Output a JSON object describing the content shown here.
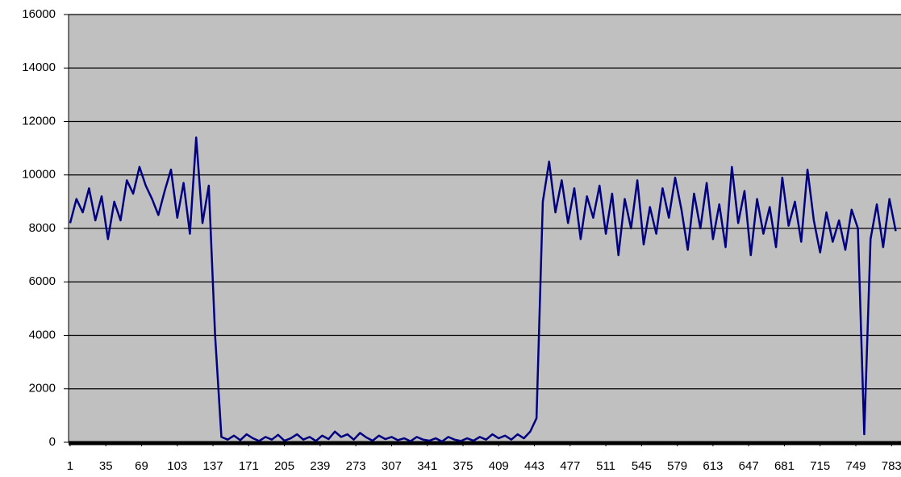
{
  "chart_data": {
    "type": "line",
    "x": [
      1,
      7,
      13,
      19,
      25,
      31,
      37,
      43,
      49,
      55,
      61,
      67,
      73,
      79,
      85,
      91,
      97,
      103,
      109,
      115,
      121,
      127,
      133,
      139,
      145,
      151,
      157,
      163,
      169,
      175,
      181,
      187,
      193,
      199,
      205,
      211,
      217,
      223,
      229,
      235,
      241,
      247,
      253,
      259,
      265,
      271,
      277,
      283,
      289,
      295,
      301,
      307,
      313,
      319,
      325,
      331,
      337,
      343,
      349,
      355,
      361,
      367,
      373,
      379,
      385,
      391,
      397,
      403,
      409,
      415,
      421,
      427,
      433,
      439,
      445,
      451,
      457,
      463,
      469,
      475,
      481,
      487,
      493,
      499,
      505,
      511,
      517,
      523,
      529,
      535,
      541,
      547,
      553,
      559,
      565,
      571,
      577,
      583,
      589,
      595,
      601,
      607,
      613,
      619,
      625,
      631,
      637,
      643,
      649,
      655,
      661,
      667,
      673,
      679,
      685,
      691,
      697,
      703,
      709,
      715,
      721,
      727,
      733,
      739,
      745,
      751,
      757,
      763,
      769,
      775,
      781,
      787
    ],
    "series": [
      {
        "color": "#000080",
        "values": [
          8200,
          9100,
          8600,
          9500,
          8300,
          9200,
          7600,
          9000,
          8300,
          9800,
          9300,
          10300,
          9600,
          9100,
          8500,
          9400,
          10200,
          8400,
          9700,
          7800,
          11400,
          8200,
          9600,
          4000,
          200,
          100,
          250,
          80,
          300,
          150,
          50,
          200,
          100,
          280,
          60,
          150,
          300,
          100,
          200,
          50,
          250,
          120,
          400,
          200,
          300,
          100,
          350,
          180,
          60,
          250,
          120,
          200,
          80,
          150,
          40,
          200,
          100,
          60,
          150,
          30,
          200,
          100,
          50,
          150,
          60,
          200,
          100,
          300,
          150,
          250,
          100,
          300,
          150,
          400,
          900,
          9000,
          10500,
          8600,
          9800,
          8200,
          9500,
          7600,
          9200,
          8400,
          9600,
          7800,
          9300,
          7000,
          9100,
          8000,
          9800,
          7400,
          8800,
          7800,
          9500,
          8400,
          9900,
          8700,
          7200,
          9300,
          8000,
          9700,
          7600,
          8900,
          7300,
          10300,
          8200,
          9400,
          7000,
          9100,
          7800,
          8800,
          7300,
          9900,
          8100,
          9000,
          7500,
          10200,
          8300,
          7100,
          8600,
          7500,
          8300,
          7200,
          8700,
          8000,
          300,
          7600,
          8900,
          7300,
          9100,
          7900
        ]
      }
    ],
    "xlim": [
      -0.5,
      792
    ],
    "xticks": [
      1,
      35,
      69,
      103,
      137,
      171,
      205,
      239,
      273,
      307,
      341,
      375,
      409,
      443,
      477,
      511,
      545,
      579,
      613,
      647,
      681,
      715,
      749,
      783
    ],
    "ylim": [
      0,
      16000
    ],
    "yticks": [
      0,
      2000,
      4000,
      6000,
      8000,
      10000,
      12000,
      14000,
      16000
    ],
    "grid": true,
    "plot_background": "#c0c0c0"
  }
}
